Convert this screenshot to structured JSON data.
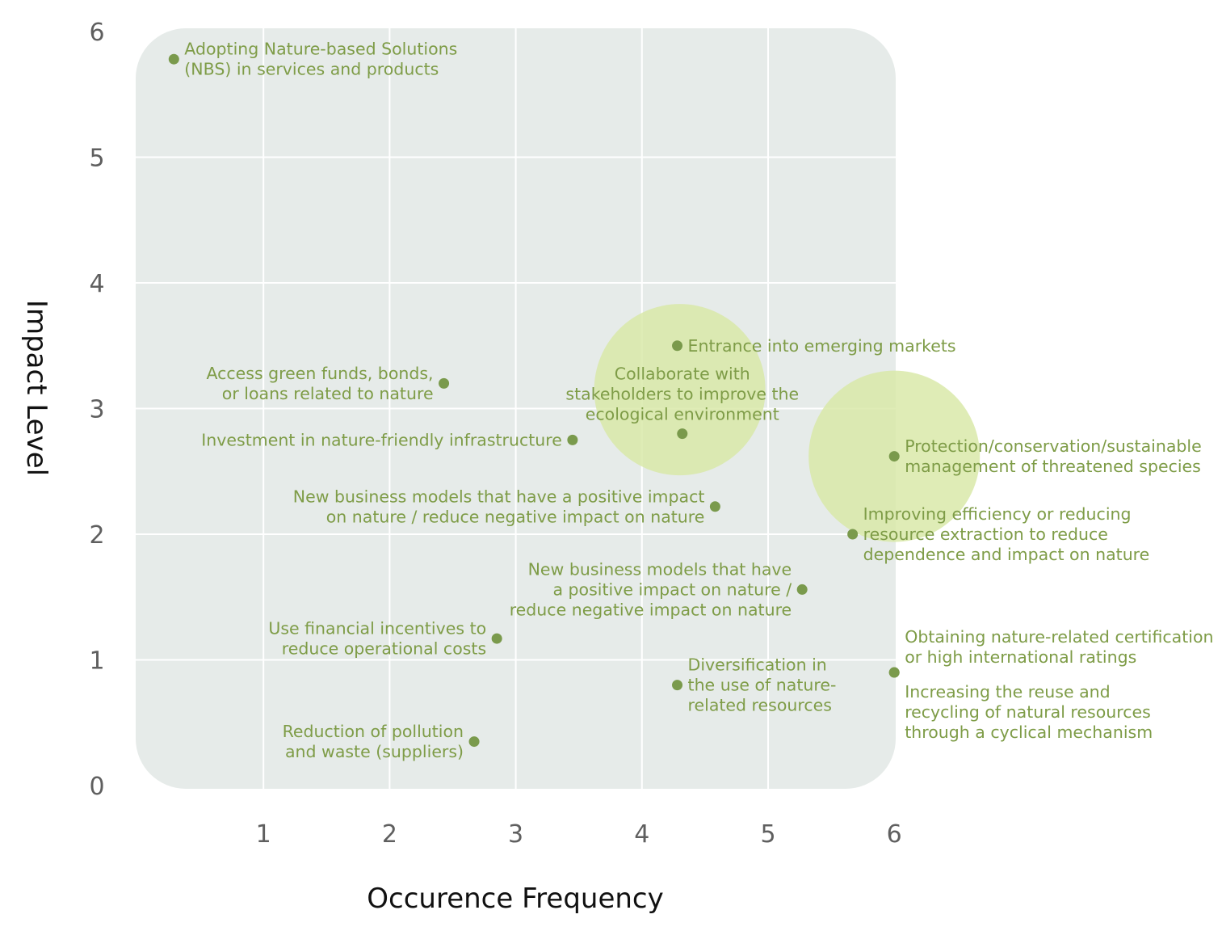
{
  "colors": {
    "panel": "#e6ebe9",
    "grid": "#ffffff",
    "point": "#7a9a4c",
    "label": "#7e9c47",
    "bubble": "#d8e8a6"
  },
  "chart_data": {
    "type": "scatter",
    "xlabel": "Occurence Frequency",
    "ylabel": "Impact Level",
    "xlim": [
      0,
      6
    ],
    "ylim": [
      0,
      6
    ],
    "xticks": [
      "1",
      "2",
      "3",
      "4",
      "5",
      "6"
    ],
    "yticks": [
      "0",
      "1",
      "2",
      "3",
      "4",
      "5",
      "6"
    ],
    "grid": true,
    "highlight_bubbles": [
      {
        "x": 4.3,
        "y": 3.15
      },
      {
        "x": 6.0,
        "y": 2.62
      }
    ],
    "points": [
      {
        "x": 0.29,
        "y": 5.78,
        "label": [
          "Adopting Nature-based Solutions",
          "(NBS) in services and products"
        ],
        "anchor": "right"
      },
      {
        "x": 4.28,
        "y": 3.5,
        "label": [
          "Entrance into emerging markets"
        ],
        "anchor": "right"
      },
      {
        "x": 2.43,
        "y": 3.2,
        "label": [
          "Access green funds, bonds,",
          "or loans related to nature"
        ],
        "anchor": "left"
      },
      {
        "x": 4.32,
        "y": 2.8,
        "label": [
          "Collaborate with",
          "stakeholders to improve the",
          "ecological environment"
        ],
        "anchor": "above"
      },
      {
        "x": 3.45,
        "y": 2.75,
        "label": [
          "Investment in nature-friendly infrastructure"
        ],
        "anchor": "left"
      },
      {
        "x": 6.0,
        "y": 2.62,
        "label": [
          "Protection/conservation/sustainable",
          "management of threatened species"
        ],
        "anchor": "right"
      },
      {
        "x": 4.58,
        "y": 2.22,
        "label": [
          "New business models that have a positive impact",
          "on nature / reduce negative impact on nature"
        ],
        "anchor": "left"
      },
      {
        "x": 5.67,
        "y": 2.0,
        "label": [
          "Improving efficiency or reducing",
          "resource extraction to reduce",
          "dependence and impact on nature"
        ],
        "anchor": "right"
      },
      {
        "x": 5.27,
        "y": 1.56,
        "label": [
          "New business models that have",
          "a positive impact on nature /",
          "reduce negative impact on nature"
        ],
        "anchor": "left"
      },
      {
        "x": 2.85,
        "y": 1.17,
        "label": [
          "Use financial incentives to",
          "reduce operational costs"
        ],
        "anchor": "left"
      },
      {
        "x": 6.0,
        "y": 0.9,
        "label": [
          "Obtaining nature-related certification",
          "or high international ratings"
        ],
        "anchor": "right-up"
      },
      {
        "x": 6.0,
        "y": 0.9,
        "label": [
          "Increasing the reuse and",
          "recycling of natural resources",
          "through a cyclical mechanism"
        ],
        "anchor": "right-down"
      },
      {
        "x": 4.28,
        "y": 0.8,
        "label": [
          "Diversification in",
          "the use of nature-",
          "related resources"
        ],
        "anchor": "right"
      },
      {
        "x": 2.67,
        "y": 0.35,
        "label": [
          "Reduction of pollution",
          "and waste (suppliers)"
        ],
        "anchor": "left"
      }
    ]
  }
}
